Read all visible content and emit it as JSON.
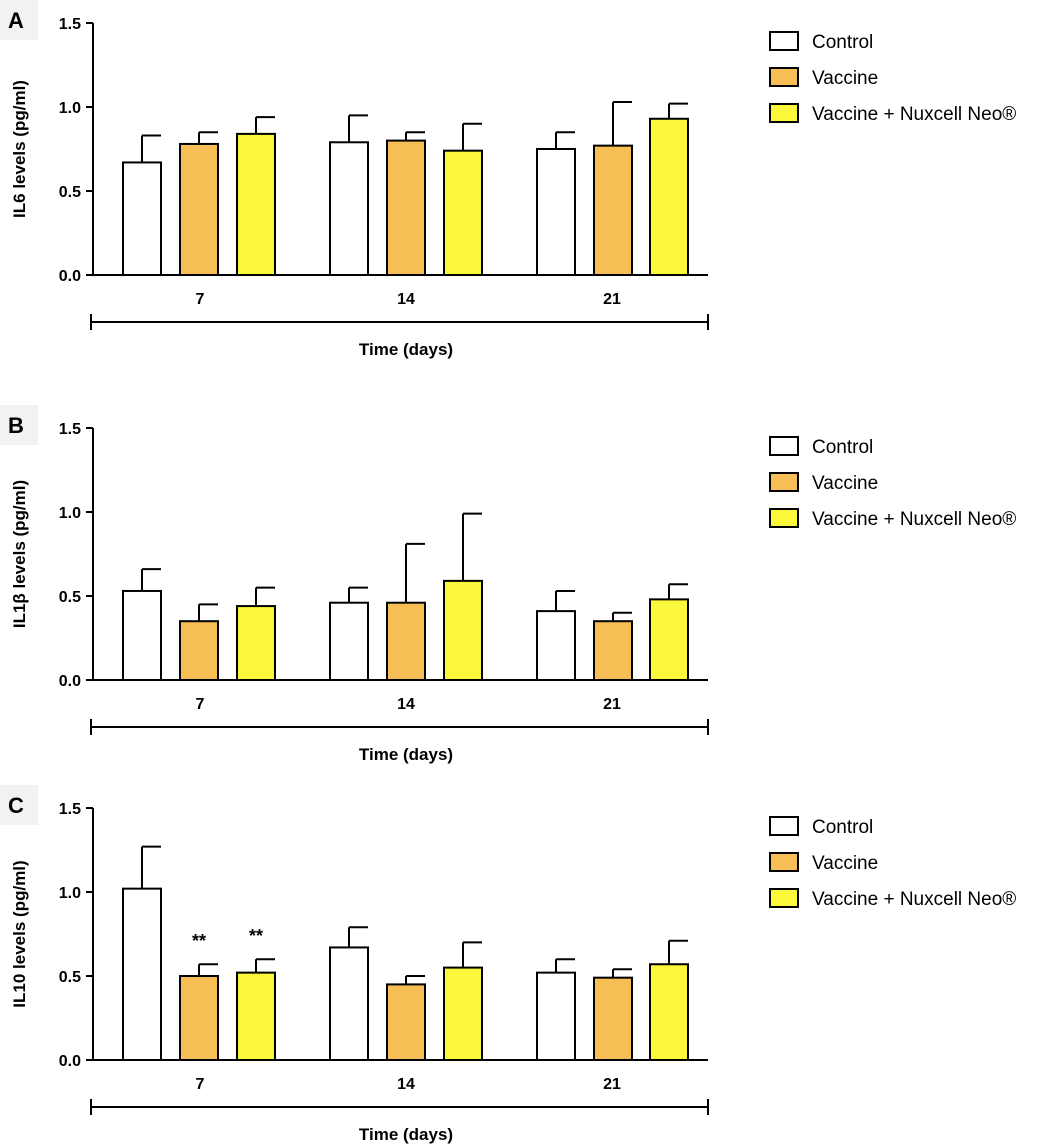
{
  "colors": {
    "Control": "#ffffff",
    "Vaccine": "#f5bf55",
    "Vaccine + Nuxcell Neo®": "#fbf73a",
    "stroke": "#000000"
  },
  "chart_data": [
    {
      "type": "bar",
      "panel": "A",
      "ylabel": "IL6 levels (pg/ml)",
      "xlabel": "Time (days)",
      "categories": [
        "7",
        "14",
        "21"
      ],
      "ylim": [
        0,
        1.5
      ],
      "yticks": [
        "0.0",
        "0.5",
        "1.0",
        "1.5"
      ],
      "legend": [
        "Control",
        "Vaccine",
        "Vaccine + Nuxcell Neo®"
      ],
      "legend_position": "right",
      "series": [
        {
          "name": "Control",
          "values": [
            0.67,
            0.79,
            0.75
          ],
          "errors": [
            0.16,
            0.16,
            0.1
          ]
        },
        {
          "name": "Vaccine",
          "values": [
            0.78,
            0.8,
            0.77
          ],
          "errors": [
            0.07,
            0.05,
            0.26
          ]
        },
        {
          "name": "Vaccine + Nuxcell Neo®",
          "values": [
            0.84,
            0.74,
            0.93
          ],
          "errors": [
            0.1,
            0.16,
            0.09
          ]
        }
      ],
      "annotations": []
    },
    {
      "type": "bar",
      "panel": "B",
      "ylabel": "IL1β levels (pg/ml)",
      "xlabel": "Time (days)",
      "categories": [
        "7",
        "14",
        "21"
      ],
      "ylim": [
        0,
        1.5
      ],
      "yticks": [
        "0.0",
        "0.5",
        "1.0",
        "1.5"
      ],
      "legend": [
        "Control",
        "Vaccine",
        "Vaccine + Nuxcell Neo®"
      ],
      "legend_position": "right",
      "series": [
        {
          "name": "Control",
          "values": [
            0.53,
            0.46,
            0.41
          ],
          "errors": [
            0.13,
            0.09,
            0.12
          ]
        },
        {
          "name": "Vaccine",
          "values": [
            0.35,
            0.46,
            0.35
          ],
          "errors": [
            0.1,
            0.35,
            0.05
          ]
        },
        {
          "name": "Vaccine + Nuxcell Neo®",
          "values": [
            0.44,
            0.59,
            0.48
          ],
          "errors": [
            0.11,
            0.4,
            0.09
          ]
        }
      ],
      "annotations": []
    },
    {
      "type": "bar",
      "panel": "C",
      "ylabel": "IL10 levels (pg/ml)",
      "xlabel": "Time (days)",
      "categories": [
        "7",
        "14",
        "21"
      ],
      "ylim": [
        0,
        1.5
      ],
      "yticks": [
        "0.0",
        "0.5",
        "1.0",
        "1.5"
      ],
      "legend": [
        "Control",
        "Vaccine",
        "Vaccine + Nuxcell Neo®"
      ],
      "legend_position": "right",
      "series": [
        {
          "name": "Control",
          "values": [
            1.02,
            0.67,
            0.52
          ],
          "errors": [
            0.25,
            0.12,
            0.08
          ]
        },
        {
          "name": "Vaccine",
          "values": [
            0.5,
            0.45,
            0.49
          ],
          "errors": [
            0.07,
            0.05,
            0.05
          ]
        },
        {
          "name": "Vaccine + Nuxcell Neo®",
          "values": [
            0.52,
            0.55,
            0.57
          ],
          "errors": [
            0.08,
            0.15,
            0.14
          ]
        }
      ],
      "annotations": [
        {
          "series": 1,
          "category": 0,
          "text": "**"
        },
        {
          "series": 2,
          "category": 0,
          "text": "**"
        }
      ]
    }
  ]
}
